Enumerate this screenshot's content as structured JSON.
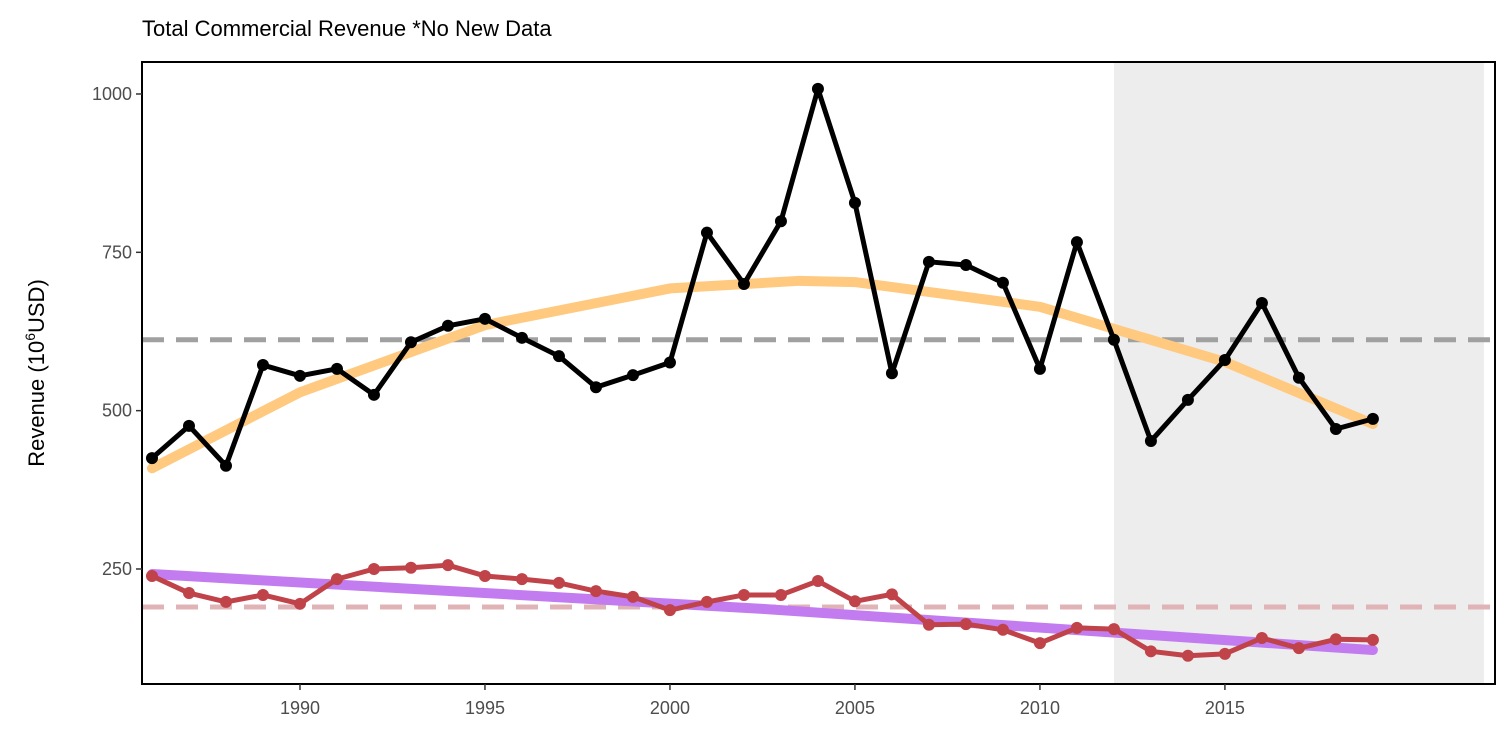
{
  "chart_data": {
    "type": "line",
    "title": "Total Commercial Revenue *No New Data",
    "ylabel": {
      "prefix": "Revenue (10",
      "sup": "6",
      "suffix": "USD)"
    },
    "x": [
      1986,
      1987,
      1988,
      1989,
      1990,
      1991,
      1992,
      1993,
      1994,
      1995,
      1996,
      1997,
      1998,
      1999,
      2000,
      2001,
      2002,
      2003,
      2004,
      2005,
      2006,
      2007,
      2008,
      2009,
      2010,
      2011,
      2012,
      2013,
      2014,
      2015,
      2016,
      2017,
      2018,
      2019
    ],
    "series": [
      {
        "color": "#000000",
        "values": [
          425,
          476,
          413,
          572,
          555,
          566,
          525,
          608,
          634,
          645,
          615,
          586,
          537,
          556,
          576,
          781,
          700,
          799,
          1008,
          828,
          559,
          735,
          730,
          702,
          566,
          766,
          612,
          452,
          517,
          580,
          670,
          552,
          471,
          487
        ]
      },
      {
        "color": "#c0434a",
        "values": [
          239,
          212,
          198,
          209,
          195,
          234,
          250,
          252,
          256,
          239,
          234,
          228,
          215,
          206,
          185,
          198,
          209,
          209,
          231,
          199,
          210,
          162,
          163,
          154,
          133,
          157,
          155,
          120,
          113,
          116,
          141,
          125,
          139,
          138
        ]
      }
    ],
    "trends": [
      {
        "color": "#ffc97f",
        "x": [
          1986,
          1990,
          1995,
          2000,
          2003.5,
          2005,
          2010,
          2015,
          2019
        ],
        "values": [
          409,
          529,
          635,
          693,
          705,
          703,
          664,
          577,
          479
        ]
      },
      {
        "color": "#c27cf0",
        "x": [
          1986,
          2002.5,
          2019
        ],
        "values": [
          242,
          187,
          122
        ]
      }
    ],
    "hlines": [
      {
        "value": 612,
        "color": "#a0a0a0"
      },
      {
        "value": 190,
        "color": "#e0b4b7"
      }
    ],
    "shade_x": [
      2012,
      2022
    ],
    "xlim": [
      1985.73,
      2022.3
    ],
    "ylim": [
      68.4,
      1050.5
    ],
    "xticks": [
      1990,
      1995,
      2000,
      2005,
      2010,
      2015
    ],
    "yticks": [
      250,
      500,
      750,
      1000
    ]
  }
}
